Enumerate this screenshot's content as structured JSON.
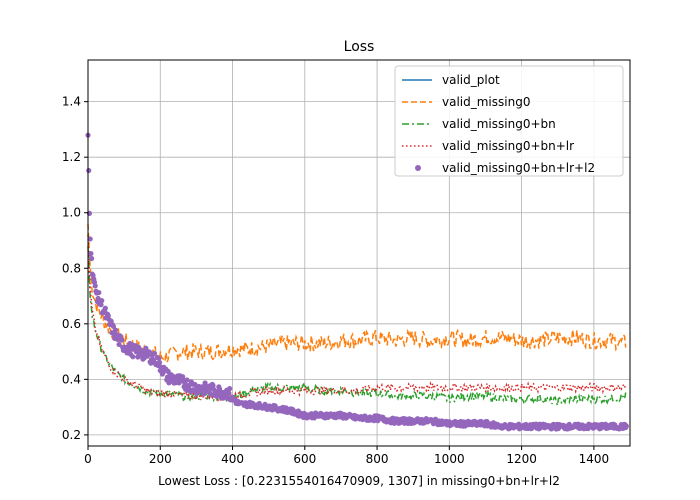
{
  "chart_data": {
    "type": "line",
    "title": "Loss",
    "xlabel": "Lowest Loss : [0.2231554016470909, 1307] in missing0+bn+lr+l2",
    "ylabel": "",
    "xlim": [
      0,
      1500
    ],
    "ylim": [
      0.16,
      1.55
    ],
    "xticks": [
      0,
      200,
      400,
      600,
      800,
      1000,
      1200,
      1400
    ],
    "yticks": [
      0.2,
      0.4,
      0.6,
      0.8,
      1.0,
      1.2,
      1.4
    ],
    "ytick_labels": [
      "0.2",
      "0.4",
      "0.6",
      "0.8",
      "1.0",
      "1.2",
      "1.4"
    ],
    "grid": true,
    "legend_position": "top-right",
    "series": [
      {
        "name": "valid_plot",
        "style": "solid",
        "color": "#1f77b4",
        "x": [],
        "y": []
      },
      {
        "name": "valid_missing0",
        "style": "dashed",
        "color": "#ff7f0e",
        "x": [
          0,
          5,
          10,
          20,
          40,
          60,
          80,
          100,
          130,
          160,
          190,
          200,
          210,
          230,
          260,
          300,
          350,
          400,
          450,
          500,
          550,
          600,
          650,
          700,
          750,
          800,
          850,
          900,
          950,
          1000,
          1050,
          1100,
          1150,
          1200,
          1250,
          1300,
          1350,
          1400,
          1450,
          1490
        ],
        "y": [
          0.96,
          0.82,
          0.74,
          0.68,
          0.62,
          0.58,
          0.56,
          0.54,
          0.52,
          0.5,
          0.49,
          0.48,
          0.48,
          0.49,
          0.5,
          0.5,
          0.5,
          0.51,
          0.51,
          0.52,
          0.53,
          0.53,
          0.53,
          0.54,
          0.54,
          0.55,
          0.54,
          0.55,
          0.54,
          0.55,
          0.54,
          0.55,
          0.55,
          0.54,
          0.54,
          0.55,
          0.55,
          0.54,
          0.54,
          0.53
        ]
      },
      {
        "name": "valid_missing0+bn",
        "style": "dashdot",
        "color": "#2ca02c",
        "x": [
          0,
          5,
          10,
          20,
          40,
          60,
          80,
          100,
          130,
          160,
          190,
          220,
          260,
          300,
          350,
          400,
          450,
          500,
          550,
          600,
          650,
          700,
          750,
          800,
          850,
          900,
          950,
          1000,
          1050,
          1100,
          1150,
          1200,
          1250,
          1300,
          1350,
          1400,
          1450,
          1490
        ],
        "y": [
          0.88,
          0.72,
          0.64,
          0.58,
          0.5,
          0.45,
          0.42,
          0.4,
          0.38,
          0.36,
          0.35,
          0.35,
          0.34,
          0.34,
          0.34,
          0.33,
          0.36,
          0.37,
          0.37,
          0.37,
          0.36,
          0.36,
          0.35,
          0.35,
          0.34,
          0.34,
          0.34,
          0.33,
          0.34,
          0.34,
          0.33,
          0.33,
          0.33,
          0.32,
          0.33,
          0.33,
          0.33,
          0.34
        ]
      },
      {
        "name": "valid_missing0+bn+lr",
        "style": "dotted",
        "color": "#d62728",
        "x": [
          0,
          5,
          10,
          20,
          40,
          60,
          80,
          100,
          130,
          160,
          190,
          220,
          260,
          300,
          350,
          400,
          450,
          500,
          550,
          600,
          650,
          700,
          750,
          800,
          850,
          900,
          950,
          1000,
          1050,
          1100,
          1150,
          1200,
          1250,
          1300,
          1350,
          1400,
          1450,
          1490
        ],
        "y": [
          0.92,
          0.74,
          0.66,
          0.58,
          0.5,
          0.45,
          0.42,
          0.4,
          0.38,
          0.36,
          0.35,
          0.35,
          0.34,
          0.34,
          0.34,
          0.34,
          0.35,
          0.36,
          0.36,
          0.36,
          0.36,
          0.36,
          0.36,
          0.37,
          0.37,
          0.37,
          0.37,
          0.37,
          0.37,
          0.37,
          0.37,
          0.37,
          0.37,
          0.37,
          0.37,
          0.37,
          0.37,
          0.37
        ]
      },
      {
        "name": "valid_missing0+bn+lr+l2",
        "style": "points",
        "color": "#9467bd",
        "x": [
          0,
          5,
          10,
          20,
          40,
          60,
          80,
          100,
          130,
          160,
          190,
          200,
          220,
          260,
          300,
          350,
          390,
          400,
          420,
          450,
          500,
          550,
          600,
          650,
          700,
          750,
          800,
          850,
          900,
          950,
          1000,
          1050,
          1100,
          1150,
          1200,
          1250,
          1300,
          1350,
          1400,
          1450,
          1490
        ],
        "y": [
          1.28,
          0.95,
          0.82,
          0.72,
          0.66,
          0.6,
          0.55,
          0.52,
          0.5,
          0.49,
          0.47,
          0.45,
          0.41,
          0.39,
          0.37,
          0.36,
          0.35,
          0.33,
          0.31,
          0.31,
          0.3,
          0.29,
          0.27,
          0.27,
          0.27,
          0.26,
          0.26,
          0.25,
          0.25,
          0.25,
          0.24,
          0.24,
          0.24,
          0.23,
          0.23,
          0.23,
          0.23,
          0.23,
          0.23,
          0.23,
          0.23
        ]
      }
    ]
  }
}
